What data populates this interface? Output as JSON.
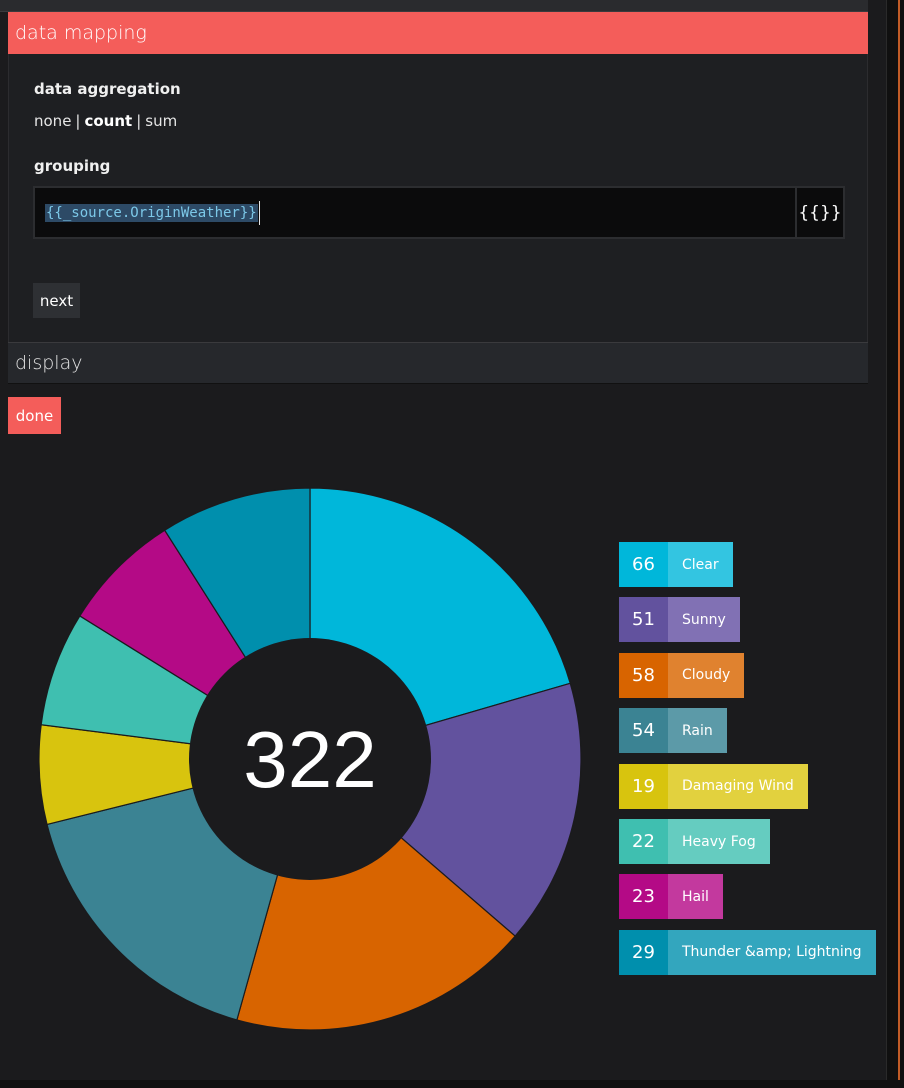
{
  "mapping": {
    "header": "data mapping",
    "aggregation_label": "data aggregation",
    "aggregation_options": [
      "none",
      "count",
      "sum"
    ],
    "aggregation_selected": "count",
    "grouping_label": "grouping",
    "grouping_value": "{{_source.OriginWeather}}",
    "expression_button": "{{}}",
    "next_label": "next"
  },
  "display": {
    "header": "display",
    "done_label": "done"
  },
  "chart_data": {
    "type": "pie",
    "donut": true,
    "total": "322",
    "categories": [
      "Clear",
      "Sunny",
      "Cloudy",
      "Rain",
      "Damaging Wind",
      "Heavy Fog",
      "Hail",
      "Thunder &amp; Lightning"
    ],
    "values": [
      66,
      51,
      58,
      54,
      19,
      22,
      23,
      29
    ],
    "colors": [
      "#00b7da",
      "#62529e",
      "#d86400",
      "#3b8393",
      "#d8c40e",
      "#3fbfb0",
      "#b40a86",
      "#008fad"
    ],
    "label_colors": [
      "#33c5e1",
      "#8171b4",
      "#e0822f",
      "#5c9aa8",
      "#e2d13e",
      "#65ccc0",
      "#c3399e",
      "#33a6be"
    ],
    "legend_placement": "right"
  }
}
